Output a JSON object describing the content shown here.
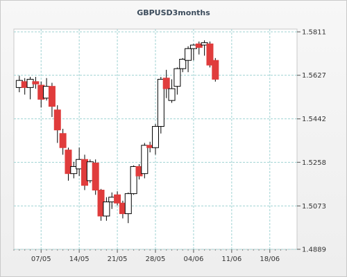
{
  "chart_data": {
    "type": "candlestick",
    "title": "GBPUSD3months",
    "xlabel": "",
    "ylabel": "",
    "ylim": [
      1.4889,
      1.5811
    ],
    "y_ticks": [
      "1.5811",
      "1.5627",
      "1.5442",
      "1.5258",
      "1.5073",
      "1.4889"
    ],
    "x_tick_labels": [
      "07/05",
      "14/05",
      "21/05",
      "28/05",
      "04/06",
      "11/06",
      "18/06"
    ],
    "x_tick_positions": [
      5,
      12,
      19,
      26,
      33,
      40,
      47
    ],
    "x_range": [
      0,
      52
    ],
    "grid": true,
    "colors": {
      "up": "#ffffff",
      "down": "#e03c3c",
      "outline": "#000000",
      "grid": "#9fd2d2"
    },
    "candles": [
      {
        "x": 1,
        "open": 1.5575,
        "high": 1.5625,
        "low": 1.5555,
        "close": 1.5605
      },
      {
        "x": 2,
        "open": 1.56,
        "high": 1.5615,
        "low": 1.5545,
        "close": 1.5575
      },
      {
        "x": 3,
        "open": 1.5575,
        "high": 1.562,
        "low": 1.5525,
        "close": 1.561
      },
      {
        "x": 4,
        "open": 1.56,
        "high": 1.562,
        "low": 1.557,
        "close": 1.559
      },
      {
        "x": 5,
        "open": 1.5585,
        "high": 1.56,
        "low": 1.549,
        "close": 1.5525
      },
      {
        "x": 6,
        "open": 1.553,
        "high": 1.5615,
        "low": 1.552,
        "close": 1.558
      },
      {
        "x": 7,
        "open": 1.558,
        "high": 1.5595,
        "low": 1.545,
        "close": 1.5495
      },
      {
        "x": 8,
        "open": 1.548,
        "high": 1.55,
        "low": 1.534,
        "close": 1.5395
      },
      {
        "x": 9,
        "open": 1.538,
        "high": 1.54,
        "low": 1.529,
        "close": 1.532
      },
      {
        "x": 10,
        "open": 1.531,
        "high": 1.532,
        "low": 1.518,
        "close": 1.521
      },
      {
        "x": 11,
        "open": 1.521,
        "high": 1.526,
        "low": 1.519,
        "close": 1.524
      },
      {
        "x": 12,
        "open": 1.523,
        "high": 1.532,
        "low": 1.52,
        "close": 1.527
      },
      {
        "x": 13,
        "open": 1.527,
        "high": 1.529,
        "low": 1.514,
        "close": 1.516
      },
      {
        "x": 14,
        "open": 1.518,
        "high": 1.527,
        "low": 1.517,
        "close": 1.526
      },
      {
        "x": 15,
        "open": 1.5255,
        "high": 1.527,
        "low": 1.512,
        "close": 1.514
      },
      {
        "x": 16,
        "open": 1.514,
        "high": 1.5145,
        "low": 1.501,
        "close": 1.503
      },
      {
        "x": 17,
        "open": 1.503,
        "high": 1.511,
        "low": 1.501,
        "close": 1.509
      },
      {
        "x": 18,
        "open": 1.509,
        "high": 1.513,
        "low": 1.506,
        "close": 1.511
      },
      {
        "x": 19,
        "open": 1.512,
        "high": 1.5135,
        "low": 1.5075,
        "close": 1.5085
      },
      {
        "x": 20,
        "open": 1.5085,
        "high": 1.5095,
        "low": 1.502,
        "close": 1.504
      },
      {
        "x": 21,
        "open": 1.504,
        "high": 1.513,
        "low": 1.5,
        "close": 1.5125
      },
      {
        "x": 22,
        "open": 1.5125,
        "high": 1.5245,
        "low": 1.512,
        "close": 1.524
      },
      {
        "x": 23,
        "open": 1.524,
        "high": 1.525,
        "low": 1.5185,
        "close": 1.52
      },
      {
        "x": 24,
        "open": 1.521,
        "high": 1.534,
        "low": 1.519,
        "close": 1.533
      },
      {
        "x": 25,
        "open": 1.533,
        "high": 1.5345,
        "low": 1.53,
        "close": 1.532
      },
      {
        "x": 26,
        "open": 1.532,
        "high": 1.542,
        "low": 1.529,
        "close": 1.541
      },
      {
        "x": 27,
        "open": 1.541,
        "high": 1.562,
        "low": 1.538,
        "close": 1.561
      },
      {
        "x": 28,
        "open": 1.5615,
        "high": 1.565,
        "low": 1.553,
        "close": 1.557
      },
      {
        "x": 29,
        "open": 1.552,
        "high": 1.561,
        "low": 1.551,
        "close": 1.557
      },
      {
        "x": 30,
        "open": 1.558,
        "high": 1.566,
        "low": 1.5545,
        "close": 1.5655
      },
      {
        "x": 31,
        "open": 1.5655,
        "high": 1.57,
        "low": 1.564,
        "close": 1.5695
      },
      {
        "x": 32,
        "open": 1.569,
        "high": 1.575,
        "low": 1.564,
        "close": 1.574
      },
      {
        "x": 33,
        "open": 1.574,
        "high": 1.576,
        "low": 1.569,
        "close": 1.5755
      },
      {
        "x": 34,
        "open": 1.576,
        "high": 1.577,
        "low": 1.5715,
        "close": 1.5745
      },
      {
        "x": 35,
        "open": 1.5755,
        "high": 1.5775,
        "low": 1.571,
        "close": 1.5765
      },
      {
        "x": 36,
        "open": 1.576,
        "high": 1.577,
        "low": 1.566,
        "close": 1.567
      },
      {
        "x": 37,
        "open": 1.569,
        "high": 1.57,
        "low": 1.56,
        "close": 1.561
      }
    ]
  }
}
